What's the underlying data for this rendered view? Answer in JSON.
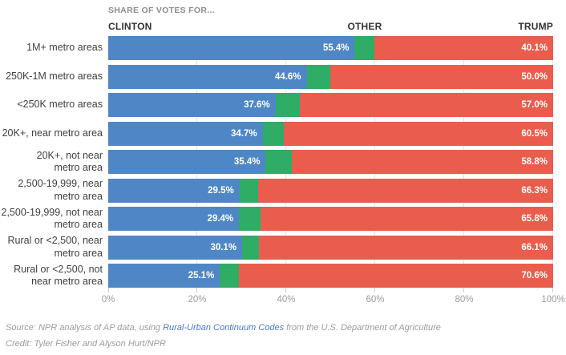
{
  "title": "SHARE OF VOTES FOR...",
  "legend": {
    "clinton": "CLINTON",
    "other": "OTHER",
    "trump": "TRUMP"
  },
  "colors": {
    "clinton": "#4f87c6",
    "other": "#2fac66",
    "trump": "#ea5d4c",
    "gridline": "#e3e3e3",
    "tick": "#cccccc",
    "axis_text": "#9b9b9b",
    "category_text": "#404040",
    "title_text": "#8d8d8d",
    "legend_text": "#333333",
    "value_text": "#ffffff",
    "link": "#4a78c9"
  },
  "chart_data": {
    "type": "bar",
    "orientation": "horizontal",
    "stacked": true,
    "title": "SHARE OF VOTES FOR...",
    "xlim": [
      0,
      100
    ],
    "x_ticks": [
      {
        "label": "0%",
        "value": 0
      },
      {
        "label": "20%",
        "value": 20
      },
      {
        "label": "40%",
        "value": 40
      },
      {
        "label": "60%",
        "value": 60
      },
      {
        "label": "80%",
        "value": 80
      },
      {
        "label": "100%",
        "value": 100
      }
    ],
    "grid_values": [
      20,
      40,
      60,
      80,
      100
    ],
    "series_names": [
      "Clinton",
      "Other",
      "Trump"
    ],
    "rows": [
      {
        "category": "1M+ metro areas",
        "label_lines": "1M+ metro areas",
        "clinton": 55.4,
        "other": 4.5,
        "trump": 40.1,
        "clinton_label": "55.4%",
        "trump_label": "40.1%"
      },
      {
        "category": "250K-1M metro areas",
        "label_lines": "250K-1M metro areas",
        "clinton": 44.6,
        "other": 5.4,
        "trump": 50.0,
        "clinton_label": "44.6%",
        "trump_label": "50.0%"
      },
      {
        "category": "<250K metro areas",
        "label_lines": "<250K metro areas",
        "clinton": 37.6,
        "other": 5.4,
        "trump": 57.0,
        "clinton_label": "37.6%",
        "trump_label": "57.0%"
      },
      {
        "category": "20K+, near metro area",
        "label_lines": "20K+, near metro area",
        "clinton": 34.7,
        "other": 4.8,
        "trump": 60.5,
        "clinton_label": "34.7%",
        "trump_label": "60.5%"
      },
      {
        "category": "20K+, not near metro area",
        "label_lines": "20K+, not near\nmetro area",
        "clinton": 35.4,
        "other": 5.8,
        "trump": 58.8,
        "clinton_label": "35.4%",
        "trump_label": "58.8%"
      },
      {
        "category": "2,500-19,999, near metro area",
        "label_lines": "2,500-19,999, near\nmetro area",
        "clinton": 29.5,
        "other": 4.2,
        "trump": 66.3,
        "clinton_label": "29.5%",
        "trump_label": "66.3%"
      },
      {
        "category": "2,500-19,999, not near metro area",
        "label_lines": "2,500-19,999, not near\nmetro area",
        "clinton": 29.4,
        "other": 4.8,
        "trump": 65.8,
        "clinton_label": "29.4%",
        "trump_label": "65.8%"
      },
      {
        "category": "Rural or <2,500, near metro area",
        "label_lines": "Rural or <2,500, near\nmetro area",
        "clinton": 30.1,
        "other": 3.8,
        "trump": 66.1,
        "clinton_label": "30.1%",
        "trump_label": "66.1%"
      },
      {
        "category": "Rural or <2,500, not near metro area",
        "label_lines": "Rural or <2,500, not\nnear metro area",
        "clinton": 25.1,
        "other": 4.3,
        "trump": 70.6,
        "clinton_label": "25.1%",
        "trump_label": "70.6%"
      }
    ]
  },
  "footer": {
    "source_prefix": "Source: NPR analysis of AP data, using ",
    "source_link": "Rural-Urban Continuum Codes",
    "source_suffix": " from the U.S. Department of Agriculture",
    "credit": "Credit: Tyler Fisher and Alyson Hurt/NPR"
  }
}
